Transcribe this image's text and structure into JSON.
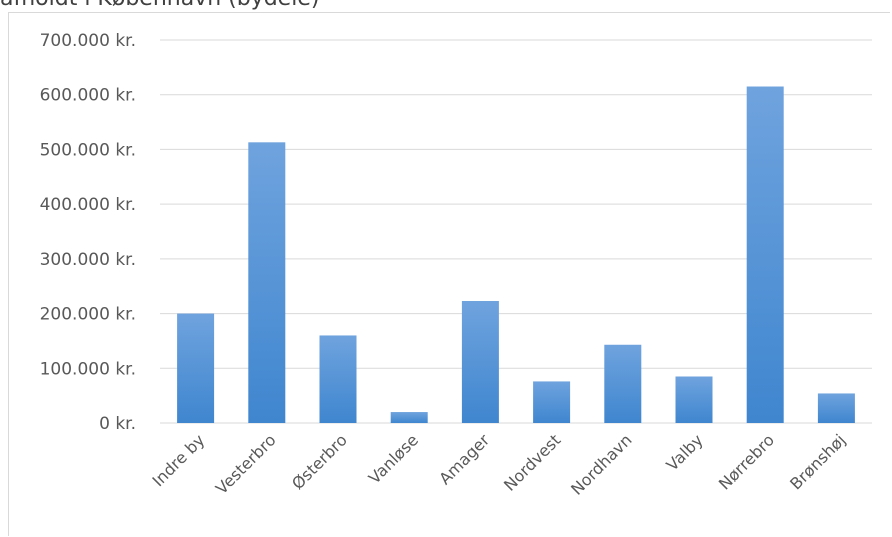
{
  "chart_data": {
    "type": "bar",
    "title": "Gennemsnitligt afholdt i København (bydele)",
    "visible_title_fragment": "afholdt i København (bydele)",
    "categories": [
      "Indre by",
      "Vesterbro",
      "Østerbro",
      "Vanløse",
      "Amager",
      "Nordvest",
      "Nordhavn",
      "Valby",
      "Nørrebro",
      "Brønshøj"
    ],
    "values": [
      200000,
      513000,
      160000,
      20000,
      223000,
      76000,
      143000,
      85000,
      615000,
      54000
    ],
    "ylim": [
      0,
      700000
    ],
    "yticks": [
      0,
      100000,
      200000,
      300000,
      400000,
      500000,
      600000,
      700000
    ],
    "ytick_labels": [
      "0 kr.",
      "100.000 kr.",
      "200.000 kr.",
      "300.000 kr.",
      "400.000 kr.",
      "500.000 kr.",
      "600.000 kr.",
      "700.000 kr."
    ],
    "grid": true,
    "legend": "none",
    "colors": {
      "bar_top": "#6fa3de",
      "bar_bottom": "#3f86cf",
      "grid": "#d9d9d9",
      "text": "#595959"
    }
  }
}
